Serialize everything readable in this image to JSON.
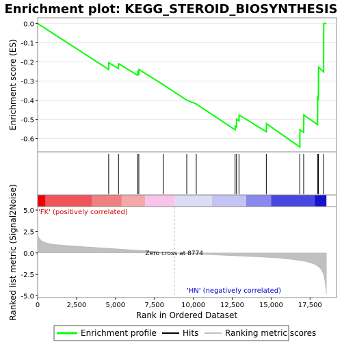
{
  "chart_data": [
    {
      "type": "line",
      "title": "Enrichment plot: KEGG_STEROID_BIOSYNTHESIS",
      "ylabel": "Enrichment score (ES)",
      "xlim": [
        0,
        19200
      ],
      "ylim": [
        -0.67,
        0.03
      ],
      "yticks": [
        "0.0",
        "-0.1",
        "-0.2",
        "-0.3",
        "-0.4",
        "-0.5",
        "-0.6"
      ],
      "ytick_values": [
        0.0,
        -0.1,
        -0.2,
        -0.3,
        -0.4,
        -0.5,
        -0.6
      ],
      "grid": true,
      "series": [
        {
          "name": "Enrichment profile",
          "color": "#00ff00",
          "x": [
            0,
            4565,
            4575,
            5195,
            5205,
            6425,
            6435,
            6500,
            6510,
            8080,
            9580,
            10190,
            12685,
            12695,
            12775,
            12785,
            12935,
            12945,
            14690,
            14700,
            16840,
            16850,
            17090,
            17100,
            17985,
            17995,
            18035,
            18045,
            18370,
            18380,
            18550
          ],
          "y": [
            0.0,
            -0.24,
            -0.205,
            -0.235,
            -0.21,
            -0.27,
            -0.253,
            -0.262,
            -0.24,
            -0.32,
            -0.4,
            -0.42,
            -0.555,
            -0.535,
            -0.54,
            -0.5,
            -0.508,
            -0.478,
            -0.565,
            -0.523,
            -0.645,
            -0.555,
            -0.568,
            -0.478,
            -0.528,
            -0.385,
            -0.39,
            -0.228,
            -0.253,
            0.0,
            0.0
          ]
        }
      ]
    },
    {
      "type": "scatter",
      "name": "Hits",
      "xlim": [
        0,
        19200
      ],
      "hits": [
        4565,
        5195,
        6425,
        6500,
        8080,
        9580,
        10190,
        12685,
        12775,
        12935,
        14690,
        16840,
        17090,
        17985,
        18035,
        18370
      ]
    },
    {
      "type": "heatmap",
      "xlim": [
        0,
        19200
      ],
      "bands": [
        {
          "x0": 0,
          "x1": 500,
          "color": "#ee0000"
        },
        {
          "x0": 500,
          "x1": 3500,
          "color": "#f0545a"
        },
        {
          "x0": 3500,
          "x1": 5400,
          "color": "#f08080"
        },
        {
          "x0": 5400,
          "x1": 6900,
          "color": "#f4a8ac"
        },
        {
          "x0": 6900,
          "x1": 8800,
          "color": "#fac4ea"
        },
        {
          "x0": 8800,
          "x1": 11200,
          "color": "#dcdcf4"
        },
        {
          "x0": 11200,
          "x1": 13400,
          "color": "#c4c4f4"
        },
        {
          "x0": 13400,
          "x1": 15000,
          "color": "#8888ee"
        },
        {
          "x0": 15000,
          "x1": 17800,
          "color": "#4848e0"
        },
        {
          "x0": 17800,
          "x1": 18550,
          "color": "#1414c8"
        }
      ]
    },
    {
      "type": "area",
      "ylabel": "Ranked list metric (Signal2Noise)",
      "xlabel": "Rank in Ordered Dataset",
      "xlim": [
        0,
        19200
      ],
      "ylim": [
        -5.2,
        5.4
      ],
      "xticks": [
        "0",
        "2,500",
        "5,000",
        "7,500",
        "10,000",
        "12,500",
        "15,000",
        "17,500"
      ],
      "xtick_values": [
        0,
        2500,
        5000,
        7500,
        10000,
        12500,
        15000,
        17500
      ],
      "yticks": [
        "5.0",
        "2.5",
        "0.0",
        "-2.5",
        "-5.0"
      ],
      "ytick_values": [
        5.0,
        2.5,
        0.0,
        -2.5,
        -5.0
      ],
      "color": "#c0c0c0",
      "x": [
        0,
        50,
        150,
        300,
        600,
        1000,
        2000,
        3000,
        4000,
        5000,
        6000,
        7000,
        8000,
        8774,
        9500,
        11000,
        12500,
        14000,
        15500,
        16500,
        17200,
        17700,
        18000,
        18200,
        18350,
        18450,
        18520,
        18550
      ],
      "y": [
        2.5,
        1.9,
        1.6,
        1.35,
        1.15,
        1.0,
        0.85,
        0.72,
        0.6,
        0.48,
        0.36,
        0.24,
        0.1,
        0.0,
        -0.08,
        -0.2,
        -0.32,
        -0.45,
        -0.6,
        -0.8,
        -1.0,
        -1.25,
        -1.55,
        -1.9,
        -2.4,
        -3.2,
        -4.2,
        -4.8
      ],
      "zero_cross_label": "Zero cross at 8774",
      "zero_cross_value": 8774,
      "pos_label": "'FK' (positively correlated)",
      "neg_label": "'HN' (negatively correlated)"
    }
  ],
  "legend": {
    "items": [
      {
        "label": "Enrichment profile",
        "color": "#00ff00"
      },
      {
        "label": "Hits",
        "color": "#000000"
      },
      {
        "label": "Ranking metric scores",
        "color": "#c0c0c0"
      }
    ]
  }
}
